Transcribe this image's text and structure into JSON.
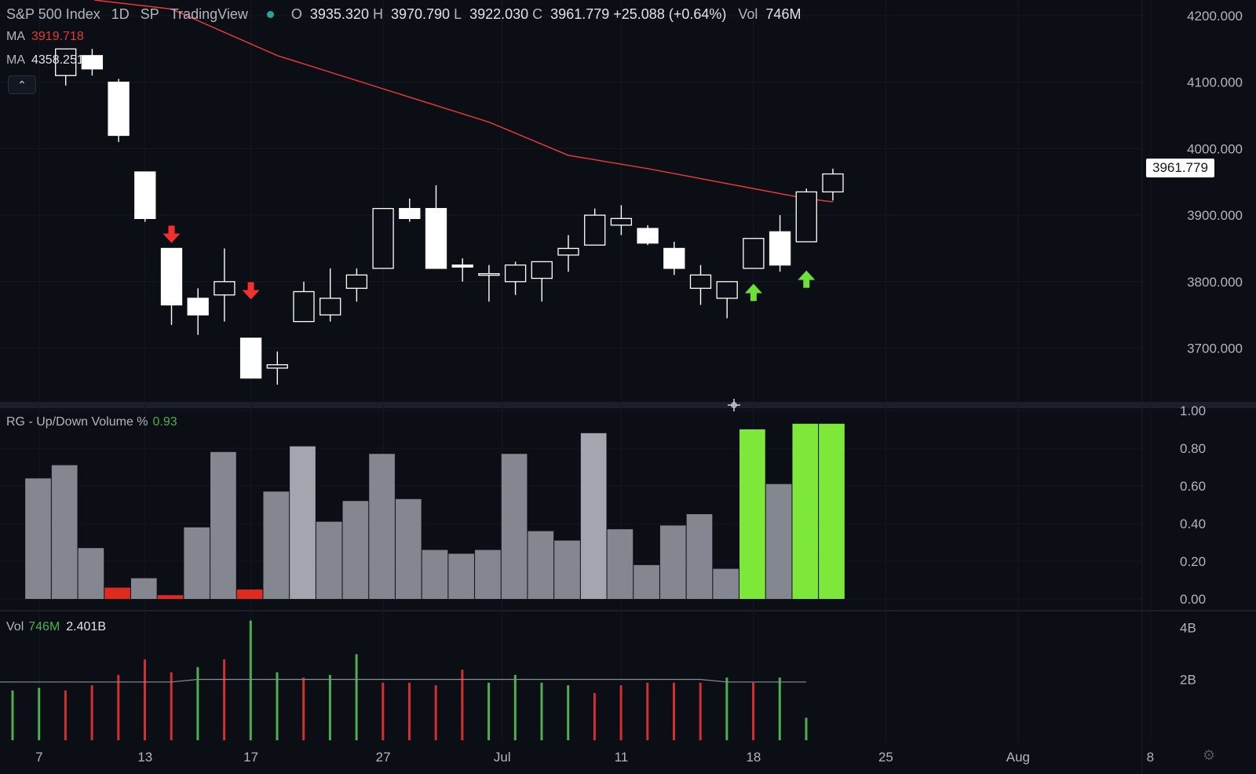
{
  "header": {
    "symbol": "S&P 500 Index",
    "interval": "1D",
    "exchange": "SP",
    "source": "TradingView",
    "open_label": "O",
    "open": "3935.320",
    "high_label": "H",
    "high": "3970.790",
    "low_label": "L",
    "low": "3922.030",
    "close_label": "C",
    "close": "3961.779",
    "change": "+25.088 (+0.64%)",
    "vol_label": "Vol",
    "vol": "746M"
  },
  "ma_legend": [
    {
      "label": "MA",
      "value": "3919.718",
      "color": "#e53935"
    },
    {
      "label": "MA",
      "value": "4358.251",
      "color": "#e0e3eb"
    }
  ],
  "price_label": "3961.779",
  "rg_title": {
    "name": "RG - Up/Down Volume %",
    "value": "0.93"
  },
  "vol_title": {
    "name": "Vol",
    "value1": "746M",
    "value2": "2.401B"
  },
  "colors": {
    "bg": "#0c0e15",
    "ma": "#e53935",
    "up": "#7cdb32",
    "down": "#e53935",
    "neutral": "#8a8d96",
    "candle": "#ffffff"
  },
  "chart_data": [
    {
      "type": "candlestick",
      "y_ticks": [
        "4200.000",
        "4100.000",
        "4000.000",
        "3900.000",
        "3800.000",
        "3700.000"
      ],
      "ylim": [
        3640,
        4215
      ],
      "x_ticks": [
        {
          "label": "7",
          "index": 0
        },
        {
          "label": "13",
          "index": 4
        },
        {
          "label": "17",
          "index": 8
        },
        {
          "label": "27",
          "index": 13
        },
        {
          "label": "Jul",
          "index": 17.5
        },
        {
          "label": "11",
          "index": 22
        },
        {
          "label": "18",
          "index": 27
        },
        {
          "label": "25",
          "index": 32
        },
        {
          "label": "Aug",
          "index": 37
        },
        {
          "label": "8",
          "index": 42
        }
      ],
      "candles": [
        {
          "i": 1,
          "o": 4110,
          "h": 4150,
          "l": 4095,
          "c": 4150
        },
        {
          "i": 2,
          "o": 4140,
          "h": 4150,
          "l": 4110,
          "c": 4120
        },
        {
          "i": 3,
          "o": 4100,
          "h": 4105,
          "l": 4010,
          "c": 4020
        },
        {
          "i": 4,
          "o": 3965,
          "h": 3965,
          "l": 3890,
          "c": 3895
        },
        {
          "i": 5,
          "o": 3850,
          "h": 3850,
          "l": 3735,
          "c": 3765
        },
        {
          "i": 6,
          "o": 3775,
          "h": 3790,
          "l": 3720,
          "c": 3750
        },
        {
          "i": 7,
          "o": 3780,
          "h": 3850,
          "l": 3740,
          "c": 3800
        },
        {
          "i": 8,
          "o": 3715,
          "h": 3715,
          "l": 3655,
          "c": 3655
        },
        {
          "i": 9,
          "o": 3670,
          "h": 3695,
          "l": 3645,
          "c": 3675
        },
        {
          "i": 10,
          "o": 3740,
          "h": 3800,
          "l": 3740,
          "c": 3785
        },
        {
          "i": 11,
          "o": 3750,
          "h": 3820,
          "l": 3740,
          "c": 3775
        },
        {
          "i": 12,
          "o": 3790,
          "h": 3820,
          "l": 3770,
          "c": 3810
        },
        {
          "i": 13,
          "o": 3820,
          "h": 3910,
          "l": 3820,
          "c": 3910
        },
        {
          "i": 14,
          "o": 3910,
          "h": 3925,
          "l": 3890,
          "c": 3895
        },
        {
          "i": 15,
          "o": 3910,
          "h": 3945,
          "l": 3820,
          "c": 3820
        },
        {
          "i": 16,
          "o": 3825,
          "h": 3835,
          "l": 3800,
          "c": 3822
        },
        {
          "i": 17,
          "o": 3812,
          "h": 3825,
          "l": 3770,
          "c": 3812
        },
        {
          "i": 18,
          "o": 3800,
          "h": 3830,
          "l": 3780,
          "c": 3825
        },
        {
          "i": 19,
          "o": 3805,
          "h": 3830,
          "l": 3770,
          "c": 3830
        },
        {
          "i": 20,
          "o": 3840,
          "h": 3870,
          "l": 3815,
          "c": 3850
        },
        {
          "i": 21,
          "o": 3855,
          "h": 3910,
          "l": 3855,
          "c": 3900
        },
        {
          "i": 22,
          "o": 3885,
          "h": 3915,
          "l": 3870,
          "c": 3895
        },
        {
          "i": 23,
          "o": 3880,
          "h": 3885,
          "l": 3855,
          "c": 3858
        },
        {
          "i": 24,
          "o": 3850,
          "h": 3860,
          "l": 3810,
          "c": 3820
        },
        {
          "i": 25,
          "o": 3790,
          "h": 3825,
          "l": 3765,
          "c": 3810
        },
        {
          "i": 26,
          "o": 3775,
          "h": 3800,
          "l": 3745,
          "c": 3800
        },
        {
          "i": 27,
          "o": 3820,
          "h": 3865,
          "l": 3820,
          "c": 3865
        },
        {
          "i": 28,
          "o": 3875,
          "h": 3900,
          "l": 3815,
          "c": 3825
        },
        {
          "i": 29,
          "o": 3860,
          "h": 3940,
          "l": 3860,
          "c": 3935
        },
        {
          "i": 30,
          "o": 3935,
          "h": 3970,
          "l": 3922,
          "c": 3962
        }
      ],
      "ma_line": [
        {
          "i": 5,
          "v": 4210
        },
        {
          "i": 9,
          "v": 4140
        },
        {
          "i": 13,
          "v": 4090
        },
        {
          "i": 17,
          "v": 4040
        },
        {
          "i": 20,
          "v": 3990
        },
        {
          "i": 23,
          "v": 3970
        },
        {
          "i": 27,
          "v": 3940
        },
        {
          "i": 29,
          "v": 3925
        },
        {
          "i": 30,
          "v": 3920
        }
      ],
      "arrows": [
        {
          "i": 5,
          "dir": "down",
          "v": 3870
        },
        {
          "i": 8,
          "dir": "down",
          "v": 3785
        },
        {
          "i": 27,
          "dir": "up",
          "v": 3785
        },
        {
          "i": 29,
          "dir": "up",
          "v": 3805
        }
      ]
    },
    {
      "type": "bar",
      "title": "RG - Up/Down Volume %",
      "y_ticks": [
        "1.00",
        "0.80",
        "0.60",
        "0.40",
        "0.20",
        "0.00"
      ],
      "ylim": [
        0,
        1.0
      ],
      "values": [
        0.64,
        0.71,
        0.27,
        0.06,
        0.11,
        0.02,
        0.38,
        0.78,
        0.05,
        0.57,
        0.81,
        0.41,
        0.52,
        0.77,
        0.53,
        0.26,
        0.24,
        0.26,
        0.77,
        0.36,
        0.31,
        0.88,
        0.37,
        0.18,
        0.39,
        0.45,
        0.16,
        0.9,
        0.61,
        0.93,
        0.93
      ],
      "states": [
        "n",
        "n",
        "n",
        "d",
        "n",
        "d",
        "n",
        "n",
        "d",
        "n",
        "l",
        "n",
        "n",
        "n",
        "n",
        "n",
        "n",
        "n",
        "n",
        "n",
        "n",
        "l",
        "n",
        "n",
        "n",
        "n",
        "n",
        "u",
        "n",
        "u",
        "u"
      ]
    },
    {
      "type": "bar",
      "title": "Vol",
      "y_ticks": [
        "4B",
        "2B"
      ],
      "ylim": [
        0,
        4.5
      ],
      "values": [
        1.8,
        1.9,
        1.8,
        2.0,
        2.4,
        3.0,
        2.5,
        2.7,
        3.0,
        4.5,
        2.5,
        2.3,
        2.4,
        3.2,
        2.1,
        2.1,
        2.0,
        2.6,
        2.1,
        2.4,
        2.1,
        2.0,
        1.7,
        2.0,
        2.1,
        2.1,
        2.1,
        2.3,
        2.1,
        2.3,
        0.746
      ],
      "directions": [
        "up",
        "up",
        "down",
        "down",
        "down",
        "down",
        "down",
        "up",
        "down",
        "up",
        "up",
        "down",
        "up",
        "up",
        "down",
        "down",
        "down",
        "down",
        "up",
        "up",
        "up",
        "up",
        "down",
        "down",
        "down",
        "down",
        "down",
        "up",
        "down",
        "up",
        "up"
      ],
      "average_line": [
        2.4,
        2.4,
        2.4,
        2.4,
        2.4,
        2.4,
        2.4,
        2.5,
        2.5,
        2.5,
        2.5,
        2.5,
        2.5,
        2.5,
        2.5,
        2.5,
        2.5,
        2.5,
        2.5,
        2.5,
        2.5,
        2.5,
        2.5,
        2.5,
        2.5,
        2.5,
        2.5,
        2.4,
        2.4,
        2.4,
        2.4
      ]
    }
  ]
}
